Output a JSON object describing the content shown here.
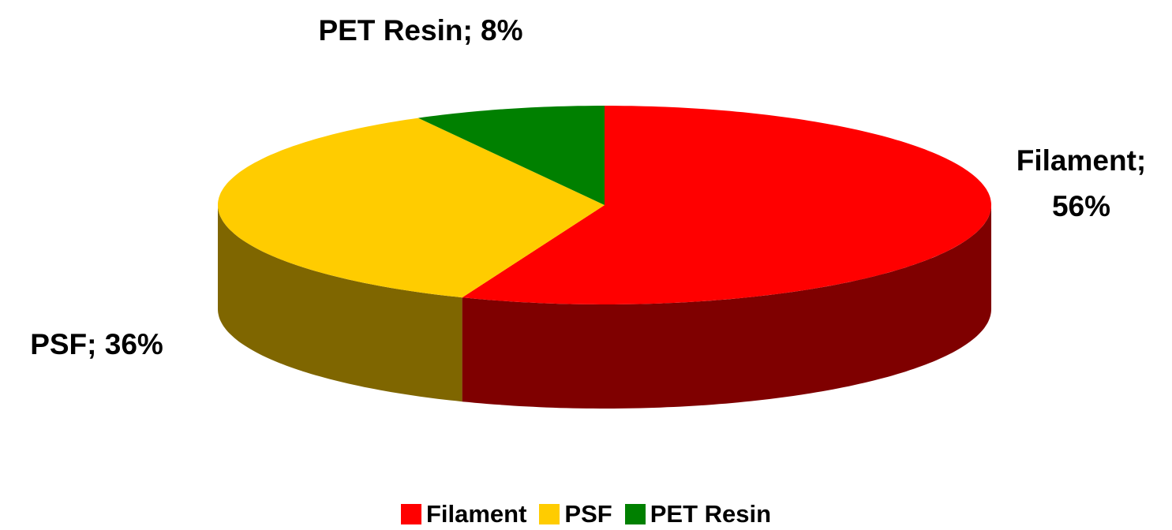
{
  "chart_data": {
    "type": "pie3d",
    "categories": [
      "Filament",
      "PSF",
      "PET Resin"
    ],
    "values": [
      56,
      36,
      8
    ],
    "value_labels": [
      "Filament; 56%",
      "PSF; 36%",
      "PET Resin; 8%"
    ],
    "colors": [
      "#ff0000",
      "#ffcc00",
      "#008000"
    ],
    "legend": "bottom"
  }
}
